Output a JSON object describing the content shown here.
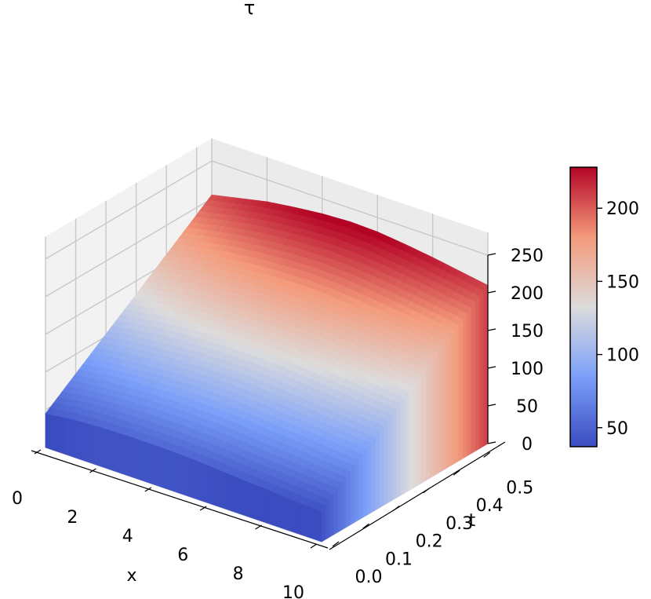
{
  "chart_data": {
    "type": "surface3d",
    "title": "τ",
    "xlabel": "x",
    "ylabel": "t",
    "zlabel": "",
    "x_range": [
      0,
      10
    ],
    "t_range": [
      0,
      0.55
    ],
    "z_range": [
      0,
      250
    ],
    "x_ticks": [
      "0",
      "2",
      "4",
      "6",
      "8",
      "10"
    ],
    "t_ticks": [
      "0.0",
      "0.1",
      "0.2",
      "0.3",
      "0.4",
      "0.5"
    ],
    "z_ticks": [
      "0",
      "50",
      "100",
      "150",
      "200",
      "250"
    ],
    "colormap": "coolwarm",
    "colorbar": {
      "range": [
        37,
        228
      ],
      "ticks": [
        "50",
        "100",
        "150",
        "200"
      ],
      "placement": "right"
    },
    "surface": {
      "description_values": "tau(x,t) rises roughly linearly with t",
      "x": [
        0,
        1,
        2,
        3,
        4,
        5,
        6,
        7,
        8,
        9,
        10
      ],
      "t": [
        0,
        0.055,
        0.11,
        0.165,
        0.22,
        0.275,
        0.33,
        0.385,
        0.44,
        0.495,
        0.55
      ],
      "tau_at_t0": [
        45,
        50,
        52,
        53,
        53,
        52,
        50,
        47,
        45,
        42,
        40
      ],
      "tau_at_tmax": [
        205,
        213,
        221,
        226,
        230,
        232,
        231,
        227,
        222,
        216,
        210
      ]
    },
    "grid": true
  }
}
